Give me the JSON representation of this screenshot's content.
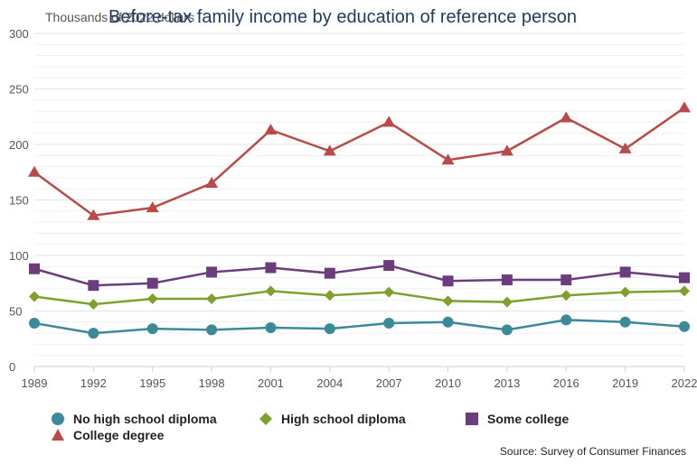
{
  "chart_data": {
    "type": "line",
    "title": "Before-tax family income by education of reference person",
    "unit_label": "Thousands of 2022 dollars",
    "source": "Source: Survey of Consumer Finances",
    "x": [
      "1989",
      "1992",
      "1995",
      "1998",
      "2001",
      "2004",
      "2007",
      "2010",
      "2013",
      "2016",
      "2019",
      "2022"
    ],
    "ylim": [
      0,
      300
    ],
    "yticks": [
      "0",
      "50",
      "100",
      "150",
      "200",
      "250",
      "300"
    ],
    "grid": true,
    "legend_position": "bottom",
    "series": [
      {
        "name": "No high school diploma",
        "color": "#3a8a9a",
        "marker": "circle",
        "values": [
          39,
          30,
          34,
          33,
          35,
          34,
          39,
          40,
          33,
          42,
          40,
          36
        ]
      },
      {
        "name": "High school diploma",
        "color": "#7ea12e",
        "marker": "diamond",
        "values": [
          63,
          56,
          61,
          61,
          68,
          64,
          67,
          59,
          58,
          64,
          67,
          68
        ]
      },
      {
        "name": "Some college",
        "color": "#6b3d7c",
        "marker": "square",
        "values": [
          88,
          73,
          75,
          85,
          89,
          84,
          91,
          77,
          78,
          78,
          85,
          80
        ]
      },
      {
        "name": "College degree",
        "color": "#b94a48",
        "marker": "triangle",
        "values": [
          175,
          136,
          143,
          165,
          213,
          194,
          220,
          186,
          194,
          224,
          196,
          233
        ]
      }
    ]
  }
}
